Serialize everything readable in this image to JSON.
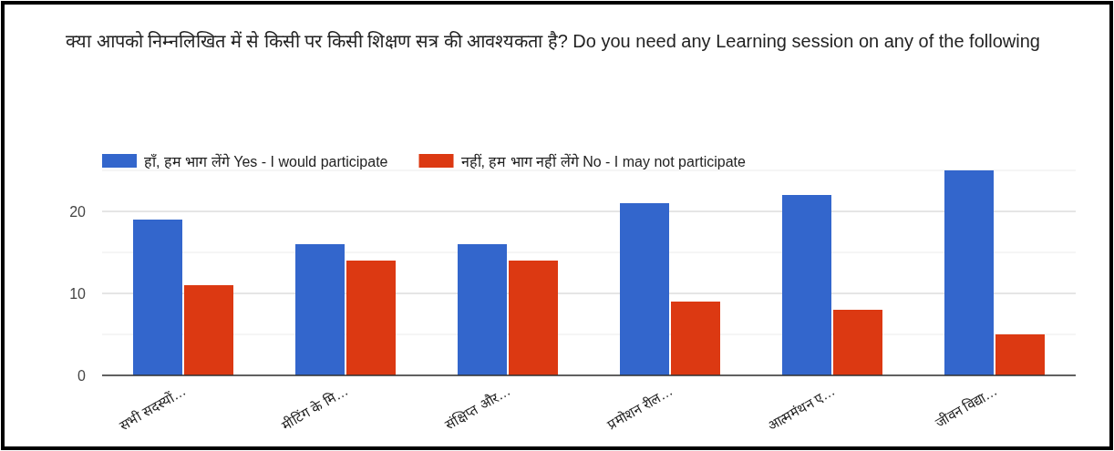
{
  "chart_data": {
    "type": "bar",
    "title": "क्या आपको निम्नलिखित में से किसी पर किसी शिक्षण सत्र की आवश्यकता है? Do you need any Learning session on any of the following",
    "categories": [
      "सभी सदस्यों…",
      "मीटिंग के मि…",
      "संक्षिप्त और…",
      "प्रमोशन रील…",
      "आत्ममंथन ए…",
      "जीवन विद्या…"
    ],
    "series": [
      {
        "name": "हाँ, हम भाग लेंगे Yes - I would participate",
        "color": "#3366cc",
        "values": [
          19,
          16,
          16,
          21,
          22,
          25
        ]
      },
      {
        "name": "नहीं, हम भाग नहीं लेंगे No - I may not participate",
        "color": "#dc3912",
        "values": [
          11,
          14,
          14,
          9,
          8,
          5
        ]
      }
    ],
    "ylim": [
      0,
      25
    ],
    "yticks": [
      0,
      {
        "value": 5,
        "label": null
      },
      10,
      {
        "value": 15,
        "label": null
      },
      20,
      {
        "value": 25,
        "label": null
      }
    ],
    "grid": "y",
    "legend": "top left"
  }
}
